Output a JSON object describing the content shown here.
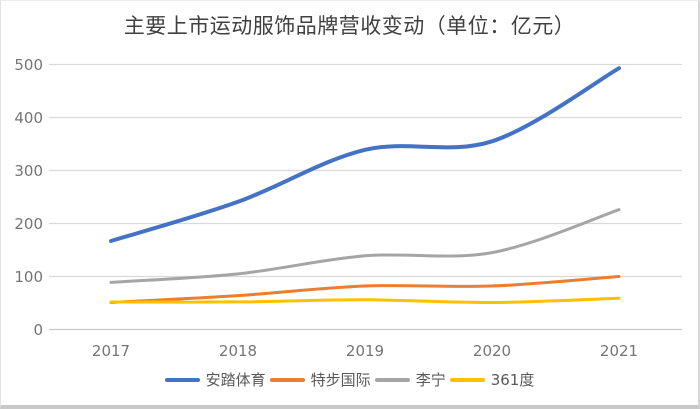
{
  "chart_data": {
    "type": "line",
    "title": "主要上市运动服饰品牌营收变动（单位：亿元）",
    "categories": [
      "2017",
      "2018",
      "2019",
      "2020",
      "2021"
    ],
    "series": [
      {
        "key": "anta",
        "name": "安踏体育",
        "color": "#4472c4",
        "values": [
          167,
          241,
          339,
          355,
          493
        ]
      },
      {
        "key": "xtep",
        "name": "特步国际",
        "color": "#ed7d31",
        "values": [
          51,
          64,
          82,
          82,
          100
        ]
      },
      {
        "key": "lining",
        "name": "李宁",
        "color": "#a5a5a5",
        "values": [
          89,
          105,
          139,
          145,
          226
        ]
      },
      {
        "key": "x361",
        "name": "361度",
        "color": "#ffc000",
        "values": [
          52,
          52,
          56,
          51,
          59
        ]
      }
    ],
    "ylim": [
      0,
      500
    ],
    "yticks": [
      0,
      100,
      200,
      300,
      400,
      500
    ],
    "grid": true,
    "smooth": true,
    "legend_position": "bottom"
  },
  "colors": {
    "title_text": "#404040",
    "tick_text": "#757575",
    "legend_text": "#595959",
    "gridline": "#d9d9d9",
    "axis_line": "#c8c8c8",
    "background": "#ffffff"
  }
}
